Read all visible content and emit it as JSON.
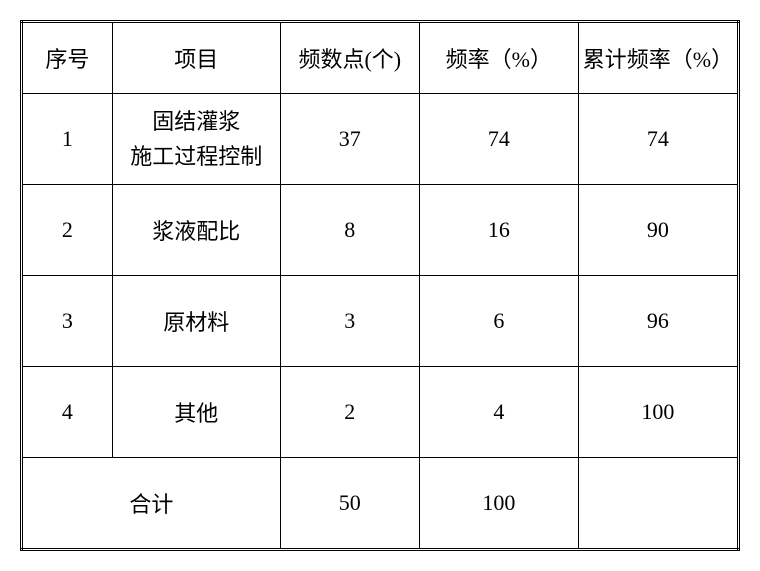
{
  "table": {
    "columns": [
      {
        "label": "序号",
        "class": "col-seq"
      },
      {
        "label": "项目",
        "class": "col-item"
      },
      {
        "label": "频数点(个)",
        "class": "col-freq"
      },
      {
        "label": "频率（%）",
        "class": "col-rate"
      },
      {
        "label": "累计频率（%）",
        "class": "col-cum"
      }
    ],
    "rows": [
      {
        "seq": "1",
        "item_line1": "固结灌浆",
        "item_line2": "施工过程控制",
        "freq": "37",
        "rate": "74",
        "cum": "74",
        "multiline": true
      },
      {
        "seq": "2",
        "item_line1": "浆液配比",
        "item_line2": "",
        "freq": "8",
        "rate": "16",
        "cum": "90",
        "multiline": false
      },
      {
        "seq": "3",
        "item_line1": "原材料",
        "item_line2": "",
        "freq": "3",
        "rate": "6",
        "cum": "96",
        "multiline": false
      },
      {
        "seq": "4",
        "item_line1": "其他",
        "item_line2": "",
        "freq": "2",
        "rate": "4",
        "cum": "100",
        "multiline": false
      }
    ],
    "total": {
      "label": "合计",
      "freq": "50",
      "rate": "100",
      "cum": ""
    },
    "background_color": "#ffffff",
    "border_color": "#000000",
    "font_family": "SimSun",
    "header_fontsize": 22,
    "cell_fontsize": 22
  }
}
